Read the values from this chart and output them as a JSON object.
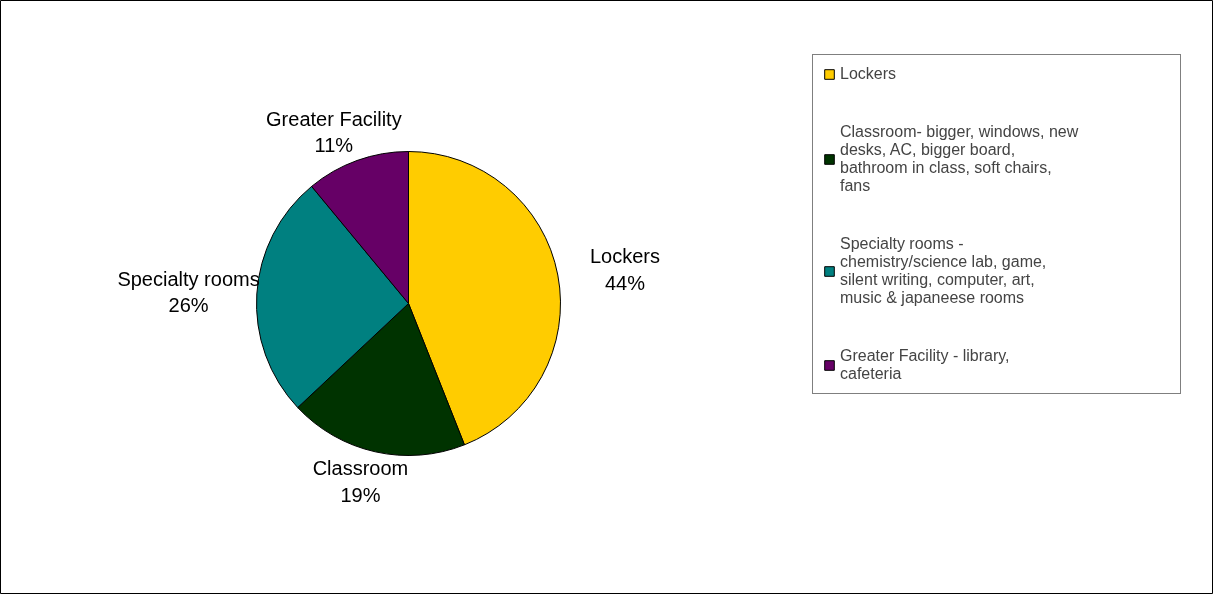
{
  "chart_data": {
    "type": "pie",
    "categories": [
      "Lockers",
      "Classroom- bigger, windows, new desks, AC, bigger board, bathroom in class, soft chairs, fans",
      "Specialty rooms - chemistry/science lab, game, silent writing, computer, art, music & japaneese rooms",
      "Greater Facility - library, cafeteria"
    ],
    "values": [
      44,
      19,
      26,
      11
    ],
    "colors": [
      "#ffcc00",
      "#003300",
      "#008080",
      "#660066"
    ],
    "value_labels": [
      "Lockers\n44%",
      "Classroom\n19%",
      "Specialty rooms\n26%",
      "Greater Facility\n11%"
    ],
    "legend": "right"
  }
}
